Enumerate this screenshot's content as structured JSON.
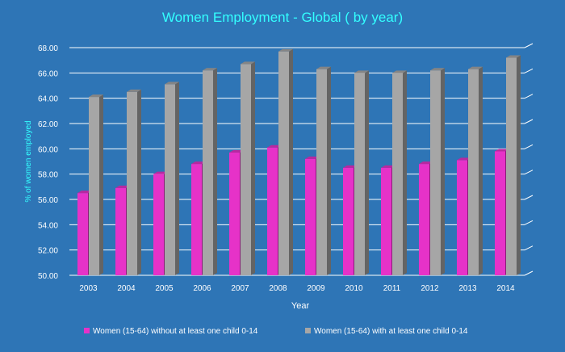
{
  "chart_data": {
    "type": "bar",
    "title": "Women Employment - Global ( by year)",
    "xlabel": "Year",
    "ylabel": "% of women employed",
    "ylim": [
      50,
      68
    ],
    "ytick_step": 2,
    "ytick_labels": [
      "50.00",
      "52.00",
      "54.00",
      "56.00",
      "58.00",
      "60.00",
      "62.00",
      "64.00",
      "66.00",
      "68.00"
    ],
    "grid": true,
    "legend_position": "bottom",
    "categories": [
      "2003",
      "2004",
      "2005",
      "2006",
      "2007",
      "2008",
      "2009",
      "2010",
      "2011",
      "2012",
      "2013",
      "2014"
    ],
    "series": [
      {
        "name": "Women (15-64) without at least one child 0-14",
        "color": "#e632c8",
        "values": [
          56.5,
          56.9,
          58.0,
          58.8,
          59.7,
          60.1,
          59.2,
          58.5,
          58.5,
          58.8,
          59.1,
          59.8
        ]
      },
      {
        "name": "Women (15-64) with at least one child 0-14",
        "color": "#a6a6a6",
        "values": [
          64.1,
          64.5,
          65.1,
          66.2,
          66.7,
          67.7,
          66.3,
          66.0,
          66.0,
          66.2,
          66.3,
          67.2
        ]
      }
    ],
    "colors": {
      "background": "#2e75b6",
      "title": "#33ffff",
      "text": "#ffffff",
      "grid": "#ffffff"
    }
  }
}
